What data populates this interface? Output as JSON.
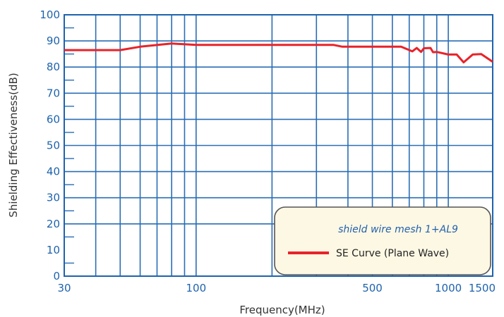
{
  "chart_data": {
    "type": "line",
    "xlabel": "Frequency(MHz)",
    "ylabel": "Shielding Effectiveness(dB)",
    "x_scale": "log",
    "xlim": [
      30,
      1500
    ],
    "ylim": [
      0,
      100
    ],
    "x_ticks": [
      30,
      100,
      500,
      1000,
      1500
    ],
    "x_tick_labels": [
      "30",
      "100",
      "500",
      "1000",
      "1500"
    ],
    "x_grid": [
      30,
      40,
      50,
      60,
      70,
      80,
      90,
      100,
      200,
      300,
      400,
      500,
      600,
      700,
      800,
      900,
      1000,
      1500
    ],
    "y_ticks": [
      0,
      10,
      20,
      30,
      40,
      50,
      60,
      70,
      80,
      90,
      100
    ],
    "y_grid": [
      90,
      80,
      70,
      60,
      50,
      40,
      30,
      20
    ],
    "grid": true,
    "legend": {
      "position": "bottom-right",
      "title": "shield wire mesh 1+AL9"
    },
    "series": [
      {
        "name": "SE Curve (Plane Wave)",
        "color": "#e8232a",
        "x": [
          30,
          50,
          60,
          80,
          100,
          200,
          350,
          380,
          650,
          720,
          750,
          780,
          800,
          850,
          870,
          900,
          1000,
          1080,
          1150,
          1250,
          1350,
          1500
        ],
        "y": [
          86.5,
          86.5,
          87.8,
          89.0,
          88.5,
          88.5,
          88.5,
          87.8,
          87.8,
          86.0,
          87.3,
          85.8,
          87.2,
          87.3,
          85.7,
          85.8,
          84.8,
          84.8,
          81.8,
          84.8,
          85.0,
          82.0
        ]
      }
    ]
  }
}
